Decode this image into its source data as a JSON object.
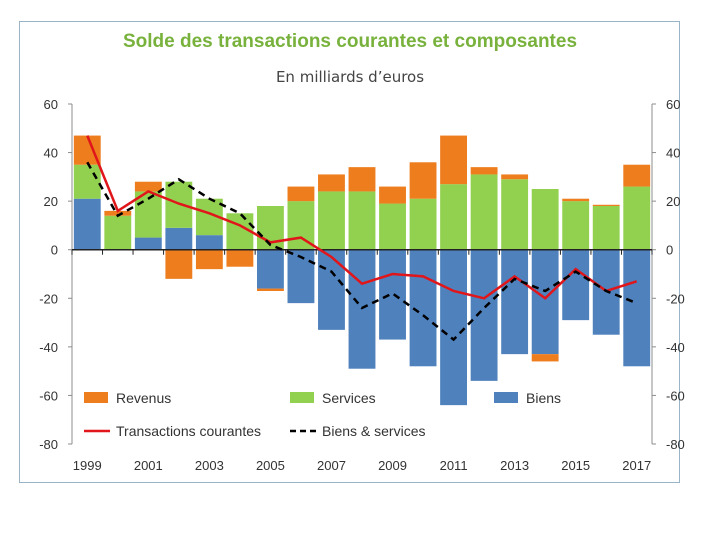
{
  "chart_data": {
    "type": "bar",
    "title": "Solde des transactions courantes et composantes",
    "subtitle": "En milliards d’euros",
    "ylim": [
      -80,
      60
    ],
    "yticks": [
      60,
      40,
      20,
      0,
      -20,
      -40,
      -60,
      -80
    ],
    "x": [
      1999,
      2000,
      2001,
      2002,
      2003,
      2004,
      2005,
      2006,
      2007,
      2008,
      2009,
      2010,
      2011,
      2012,
      2013,
      2014,
      2015,
      2016,
      2017
    ],
    "xtick_labels": [
      "1999",
      "2001",
      "2003",
      "2005",
      "2007",
      "2009",
      "2011",
      "2013",
      "2015",
      "2017"
    ],
    "colors": {
      "revenus": "#ee7d1e",
      "services": "#92d050",
      "biens": "#4f81bd",
      "transactions": "#e0161b",
      "biens_services": "#000000"
    },
    "series": [
      {
        "name": "Revenus",
        "values": [
          12,
          2,
          4,
          -12,
          -8,
          -7,
          -1,
          6,
          7,
          10,
          7,
          15,
          20,
          3,
          2,
          -3,
          1,
          0.5,
          9
        ]
      },
      {
        "name": "Services",
        "values": [
          14,
          14,
          19,
          19,
          15,
          15,
          18,
          20,
          24,
          24,
          19,
          21,
          27,
          31,
          29,
          25,
          20,
          18,
          26
        ]
      },
      {
        "name": "Biens",
        "values": [
          21,
          0,
          5,
          9,
          6,
          0,
          -16,
          -22,
          -33,
          -49,
          -37,
          -48,
          -64,
          -54,
          -43,
          -43,
          -29,
          -35,
          -48
        ]
      },
      {
        "name": "Transactions courantes",
        "values": [
          47,
          16,
          24,
          19,
          15,
          10,
          3,
          5,
          -3,
          -14,
          -10,
          -11,
          -17,
          -20,
          -11,
          -20,
          -8,
          -17,
          -13
        ]
      },
      {
        "name": "Biens & services",
        "values": [
          36,
          14,
          21,
          29,
          21,
          15,
          2,
          -3,
          -9,
          -24,
          -18,
          -27,
          -37,
          -24,
          -12,
          -17,
          -9,
          -17,
          -22
        ]
      }
    ],
    "legend": [
      {
        "label": "Revenus",
        "kind": "box",
        "color_key": "revenus"
      },
      {
        "label": "Services",
        "kind": "box",
        "color_key": "services"
      },
      {
        "label": "Biens",
        "kind": "box",
        "color_key": "biens"
      },
      {
        "label": "Transactions courantes",
        "kind": "line",
        "color_key": "transactions"
      },
      {
        "label": "Biens & services",
        "kind": "dash",
        "color_key": "biens_services"
      }
    ]
  }
}
